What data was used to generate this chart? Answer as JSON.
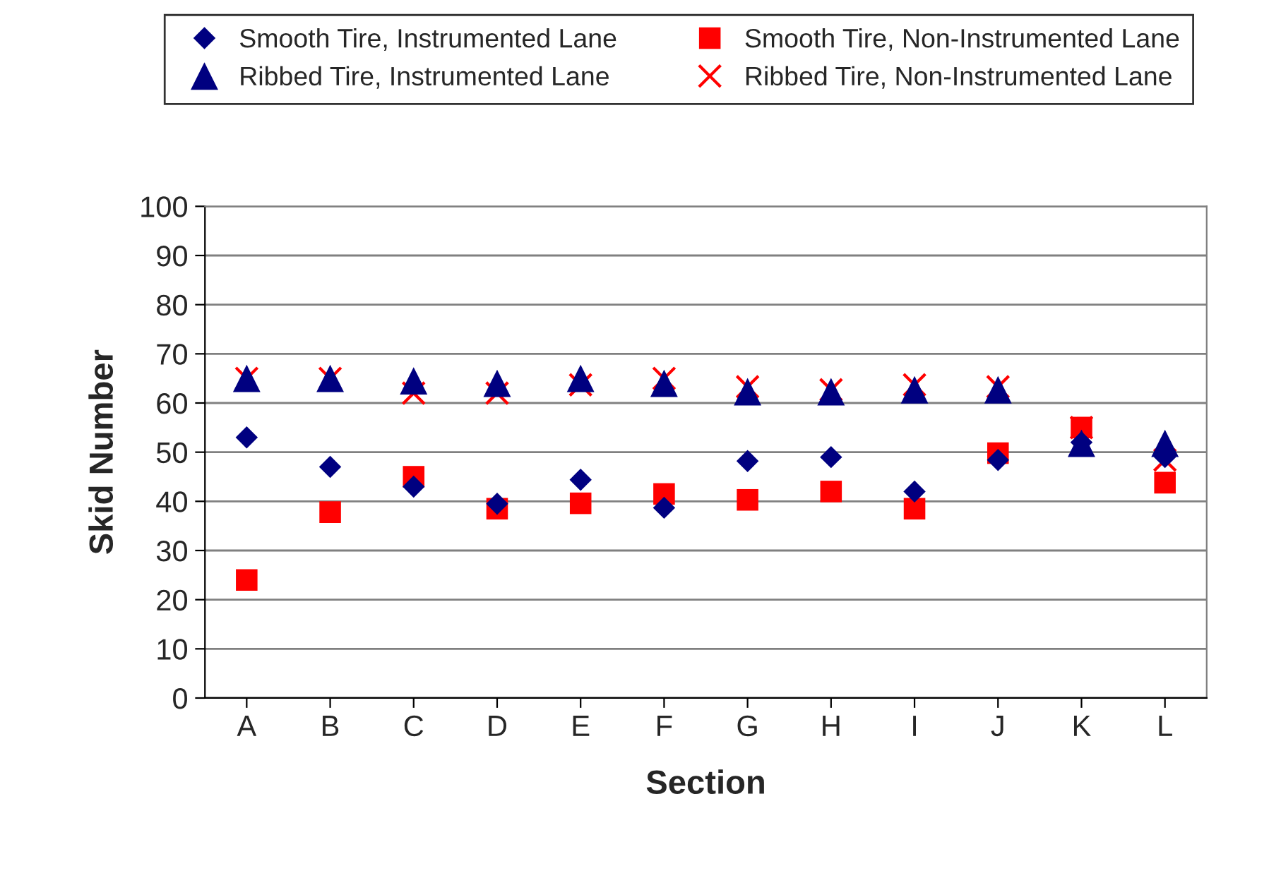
{
  "chart_data": {
    "type": "scatter",
    "xlabel": "Section",
    "ylabel": "Skid Number",
    "categories": [
      "A",
      "B",
      "C",
      "D",
      "E",
      "F",
      "G",
      "H",
      "I",
      "J",
      "K",
      "L"
    ],
    "series": [
      {
        "name": "Smooth Tire, Instrumented Lane",
        "color": "#000080",
        "marker": "diamond",
        "values": [
          53,
          47,
          43,
          39.5,
          44.4,
          38.7,
          48.2,
          49,
          42,
          48.4,
          52,
          49
        ]
      },
      {
        "name": "Ribbed Tire, Instrumented Lane",
        "color": "#000080",
        "marker": "triangle",
        "values": [
          65,
          65,
          64.5,
          64,
          65,
          64,
          62.3,
          62.3,
          62.7,
          62.7,
          51.8,
          51.8
        ]
      },
      {
        "name": "Smooth Tire, Non-Instrumented Lane",
        "color": "#ff0000",
        "marker": "square",
        "values": [
          24,
          37.8,
          45,
          38.5,
          39.6,
          41.5,
          40.3,
          42,
          38.5,
          49.8,
          55,
          43.8
        ]
      },
      {
        "name": "Ribbed Tire, Non-Instrumented Lane",
        "color": "#ff0000",
        "marker": "cross",
        "values": [
          65,
          65,
          62,
          62,
          63.7,
          65,
          63.3,
          62.7,
          63.7,
          63.3,
          55,
          48.4
        ]
      }
    ],
    "ylim": [
      0,
      100
    ],
    "yticks": [
      0,
      10,
      20,
      30,
      40,
      50,
      60,
      70,
      80,
      90,
      100
    ],
    "grid": "y",
    "legend": "top"
  }
}
